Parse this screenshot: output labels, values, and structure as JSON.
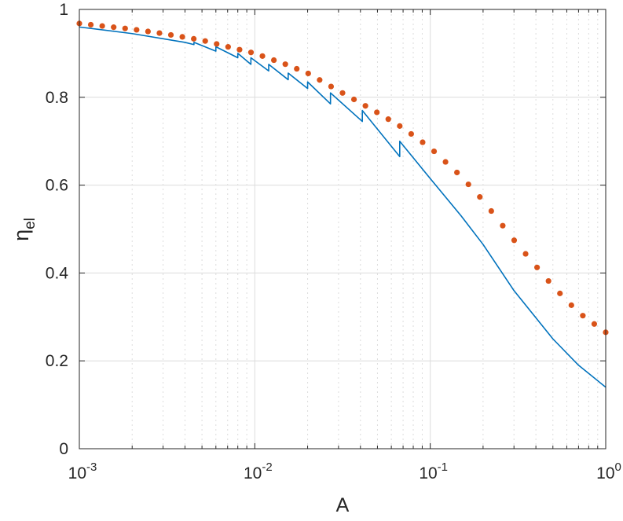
{
  "chart_data": {
    "type": "line",
    "xscale": "log",
    "xlim": [
      0.001,
      1
    ],
    "ylim": [
      0,
      1
    ],
    "xlabel": "A",
    "ylabel": {
      "main": "η",
      "sub": "el"
    },
    "grid": true,
    "minor_grid_x": true,
    "xticks": [
      {
        "base": "10",
        "exp": "-3"
      },
      {
        "base": "10",
        "exp": "-2"
      },
      {
        "base": "10",
        "exp": "-1"
      },
      {
        "base": "10",
        "exp": "0"
      }
    ],
    "yticks": [
      "0",
      "0.2",
      "0.4",
      "0.6",
      "0.8",
      "1"
    ],
    "colors": {
      "series_1": "#0072bd",
      "series_2": "#d95319",
      "grid": "#dcdcdc",
      "axis": "#262626"
    },
    "series": [
      {
        "style": "solid",
        "x": [
          0.001,
          0.002,
          0.004,
          0.0045,
          0.0045,
          0.006,
          0.006,
          0.008,
          0.008,
          0.0095,
          0.0095,
          0.012,
          0.012,
          0.0155,
          0.0155,
          0.02,
          0.02,
          0.027,
          0.027,
          0.041,
          0.041,
          0.067,
          0.067,
          0.1,
          0.15,
          0.2,
          0.3,
          0.5,
          0.7,
          1.0
        ],
        "y": [
          0.96,
          0.945,
          0.925,
          0.92,
          0.925,
          0.905,
          0.915,
          0.89,
          0.9,
          0.875,
          0.89,
          0.86,
          0.875,
          0.84,
          0.855,
          0.82,
          0.835,
          0.785,
          0.81,
          0.745,
          0.77,
          0.665,
          0.7,
          0.615,
          0.53,
          0.465,
          0.36,
          0.25,
          0.19,
          0.14
        ]
      },
      {
        "style": "dotted",
        "x": [
          0.001,
          0.002,
          0.003,
          0.005,
          0.007,
          0.01,
          0.015,
          0.02,
          0.03,
          0.05,
          0.07,
          0.1,
          0.15,
          0.2,
          0.3,
          0.5,
          0.7,
          1.0
        ],
        "y": [
          0.968,
          0.955,
          0.945,
          0.93,
          0.915,
          0.9,
          0.875,
          0.855,
          0.815,
          0.765,
          0.73,
          0.685,
          0.62,
          0.565,
          0.475,
          0.37,
          0.31,
          0.265
        ]
      }
    ]
  }
}
